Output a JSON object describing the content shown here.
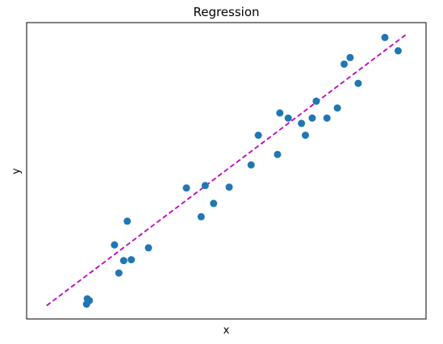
{
  "chart_data": {
    "type": "scatter",
    "title": "Regression",
    "xlabel": "x",
    "ylabel": "y",
    "xticks": false,
    "yticks": false,
    "grid": false,
    "xlim": [
      0,
      10
    ],
    "ylim": [
      0,
      10
    ],
    "points": {
      "color": "#1f77b4",
      "data": [
        [
          1.5,
          0.5
        ],
        [
          1.52,
          0.68
        ],
        [
          1.57,
          0.62
        ],
        [
          2.2,
          2.5
        ],
        [
          2.31,
          1.55
        ],
        [
          2.43,
          1.97
        ],
        [
          2.52,
          3.3
        ],
        [
          2.62,
          2.0
        ],
        [
          3.05,
          2.4
        ],
        [
          4.0,
          4.42
        ],
        [
          4.37,
          3.45
        ],
        [
          4.47,
          4.5
        ],
        [
          4.68,
          3.9
        ],
        [
          5.07,
          4.45
        ],
        [
          5.62,
          5.2
        ],
        [
          5.8,
          6.2
        ],
        [
          6.28,
          5.55
        ],
        [
          6.34,
          6.95
        ],
        [
          6.55,
          6.78
        ],
        [
          6.88,
          6.6
        ],
        [
          6.98,
          6.2
        ],
        [
          7.15,
          6.78
        ],
        [
          7.25,
          7.35
        ],
        [
          7.52,
          6.78
        ],
        [
          7.78,
          7.12
        ],
        [
          7.95,
          8.6
        ],
        [
          8.1,
          8.82
        ],
        [
          8.3,
          7.95
        ],
        [
          8.97,
          9.5
        ],
        [
          9.3,
          9.05
        ]
      ]
    },
    "fit_line": {
      "style": "dashed",
      "color": "#bf00bf",
      "x": [
        0.5,
        9.5
      ],
      "y": [
        0.45,
        9.6
      ]
    }
  }
}
